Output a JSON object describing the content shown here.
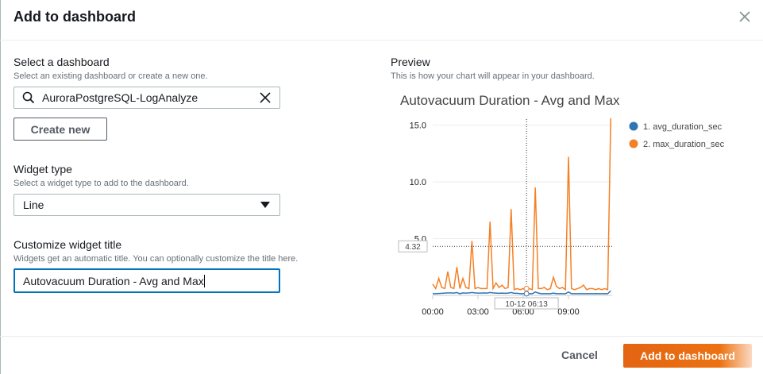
{
  "dialog": {
    "title": "Add to dashboard",
    "close_icon": "close-icon"
  },
  "dashboard": {
    "label": "Select a dashboard",
    "description": "Select an existing dashboard or create a new one.",
    "search_value": "AuroraPostgreSQL-LogAnalyze",
    "create_new_label": "Create new"
  },
  "widget_type": {
    "label": "Widget type",
    "description": "Select a widget type to add to the dashboard.",
    "selected": "Line"
  },
  "widget_title": {
    "label": "Customize widget title",
    "description": "Widgets get an automatic title. You can optionally customize the title here.",
    "value": "Autovacuum Duration - Avg and Max"
  },
  "preview": {
    "label": "Preview",
    "description": "This is how your chart will appear in your dashboard."
  },
  "footer": {
    "cancel_label": "Cancel",
    "submit_label": "Add to dashboard"
  },
  "colors": {
    "accent": "#ec7211",
    "focus": "#0073bb",
    "avg": "#2f74b5",
    "max": "#f58025"
  },
  "chart_data": {
    "type": "line",
    "title": "Autovacuum Duration - Avg and Max",
    "x_ticks": [
      "00:00",
      "03:00",
      "06:00",
      "09:00"
    ],
    "y_ticks": [
      "5.0",
      "10.0",
      "15.0"
    ],
    "ylim": [
      0,
      15.6
    ],
    "grid": true,
    "legend_placement": "right",
    "crosshair": {
      "x_label": "10-12 06:13",
      "y_label": "4.32",
      "x": "06:13",
      "y": 4.32
    },
    "x": [
      "00:00",
      "00:12",
      "00:24",
      "00:36",
      "00:48",
      "01:00",
      "01:12",
      "01:24",
      "01:36",
      "01:48",
      "02:00",
      "02:12",
      "02:24",
      "02:36",
      "02:48",
      "03:00",
      "03:12",
      "03:24",
      "03:36",
      "03:48",
      "04:00",
      "04:12",
      "04:24",
      "04:36",
      "04:48",
      "05:00",
      "05:12",
      "05:24",
      "05:36",
      "05:48",
      "06:00",
      "06:12",
      "06:24",
      "06:36",
      "06:48",
      "07:00",
      "07:12",
      "07:24",
      "07:36",
      "07:48",
      "08:00",
      "08:12",
      "08:24",
      "08:36",
      "08:48",
      "09:00",
      "09:12",
      "09:24",
      "09:36",
      "09:48",
      "10:00",
      "10:12",
      "10:24",
      "10:36",
      "10:48",
      "11:00",
      "11:12",
      "11:24",
      "11:36",
      "11:48"
    ],
    "series": [
      {
        "name": "1. avg_duration_sec",
        "color": "#2f74b5",
        "values": [
          0.15,
          0.15,
          0.17,
          0.18,
          0.2,
          0.22,
          0.22,
          0.2,
          0.25,
          0.15,
          0.22,
          0.2,
          0.22,
          0.25,
          0.22,
          0.2,
          0.2,
          0.22,
          0.2,
          0.25,
          0.22,
          0.2,
          0.18,
          0.2,
          0.18,
          0.2,
          0.25,
          0.18,
          0.18,
          0.15,
          0.15,
          0.15,
          0.15,
          0.15,
          0.3,
          0.2,
          0.15,
          0.15,
          0.15,
          0.15,
          0.2,
          0.15,
          0.15,
          0.15,
          0.15,
          0.3,
          0.15,
          0.15,
          0.15,
          0.15,
          0.15,
          0.15,
          0.15,
          0.15,
          0.15,
          0.15,
          0.15,
          0.15,
          0.15,
          0.4
        ]
      },
      {
        "name": "2. max_duration_sec",
        "color": "#f58025",
        "values": [
          1.0,
          0.6,
          1.5,
          0.7,
          0.6,
          2.1,
          0.7,
          0.6,
          2.5,
          0.6,
          1.5,
          0.7,
          0.6,
          4.8,
          0.6,
          0.7,
          0.6,
          0.6,
          0.6,
          6.5,
          0.6,
          1.1,
          0.7,
          0.9,
          0.6,
          0.7,
          7.6,
          0.5,
          0.6,
          0.5,
          0.6,
          0.4,
          0.6,
          0.5,
          9.5,
          0.6,
          0.6,
          0.7,
          0.5,
          0.6,
          1.6,
          0.8,
          0.6,
          0.7,
          0.5,
          12.2,
          0.6,
          0.5,
          0.6,
          0.7,
          0.9,
          0.5,
          0.6,
          0.6,
          0.5,
          0.6,
          0.5,
          0.6,
          0.5,
          15.6
        ]
      }
    ]
  }
}
